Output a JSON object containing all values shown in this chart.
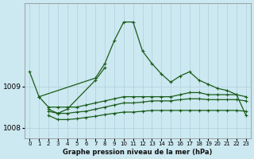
{
  "title": "Graphe pression niveau de la mer (hPa)",
  "background_color": "#cce8f0",
  "grid_color": "#b0d0dc",
  "line_color": "#1a5c1a",
  "x_ticks": [
    0,
    1,
    2,
    3,
    4,
    5,
    6,
    7,
    8,
    9,
    10,
    11,
    12,
    13,
    14,
    15,
    16,
    17,
    18,
    19,
    20,
    21,
    22,
    23
  ],
  "ylim": [
    1007.75,
    1011.0
  ],
  "yticks": [
    1008,
    1009
  ],
  "series": [
    {
      "name": "s1_top_hump",
      "x": [
        0,
        1,
        7,
        8,
        9,
        10,
        11,
        12,
        13,
        14,
        15,
        16,
        17,
        18,
        19,
        20,
        21,
        22,
        23
      ],
      "y": [
        1009.35,
        1008.75,
        1009.2,
        1009.55,
        1010.1,
        1010.55,
        1010.55,
        1009.85,
        1009.55,
        1009.3,
        1009.1,
        1009.25,
        1009.35,
        1009.15,
        1009.05,
        1008.95,
        1008.9,
        1008.8,
        1008.3
      ]
    },
    {
      "name": "s2_mid_rising",
      "x": [
        1,
        2,
        3,
        4,
        5,
        6,
        7,
        8,
        9,
        10,
        11,
        12,
        13,
        14,
        15,
        16,
        17,
        18,
        19,
        20,
        21,
        22,
        23
      ],
      "y": [
        1008.75,
        1008.5,
        1008.5,
        1008.5,
        1008.5,
        1008.55,
        1008.6,
        1008.65,
        1008.7,
        1008.75,
        1008.75,
        1008.75,
        1008.75,
        1008.75,
        1008.75,
        1008.8,
        1008.85,
        1008.85,
        1008.8,
        1008.8,
        1008.8,
        1008.8,
        1008.75
      ]
    },
    {
      "name": "s3_flat_low",
      "x": [
        2,
        3,
        4,
        5,
        6,
        7,
        8,
        9,
        10,
        11,
        12,
        13,
        14,
        15,
        16,
        17,
        18,
        19,
        20,
        21,
        22,
        23
      ],
      "y": [
        1008.4,
        1008.35,
        1008.35,
        1008.38,
        1008.4,
        1008.45,
        1008.5,
        1008.55,
        1008.6,
        1008.6,
        1008.62,
        1008.65,
        1008.65,
        1008.65,
        1008.68,
        1008.7,
        1008.7,
        1008.68,
        1008.68,
        1008.68,
        1008.68,
        1008.65
      ]
    },
    {
      "name": "s4_lowest",
      "x": [
        2,
        3,
        4,
        5,
        6,
        7,
        8,
        9,
        10,
        11,
        12,
        13,
        14,
        15,
        16,
        17,
        18,
        19,
        20,
        21,
        22,
        23
      ],
      "y": [
        1008.3,
        1008.2,
        1008.2,
        1008.22,
        1008.25,
        1008.28,
        1008.32,
        1008.35,
        1008.38,
        1008.38,
        1008.4,
        1008.42,
        1008.42,
        1008.42,
        1008.42,
        1008.42,
        1008.42,
        1008.42,
        1008.42,
        1008.42,
        1008.42,
        1008.4
      ]
    },
    {
      "name": "s5_wavy_mid",
      "x": [
        2,
        3,
        4,
        7,
        8
      ],
      "y": [
        1008.45,
        1008.35,
        1008.45,
        1009.15,
        1009.45
      ]
    }
  ]
}
